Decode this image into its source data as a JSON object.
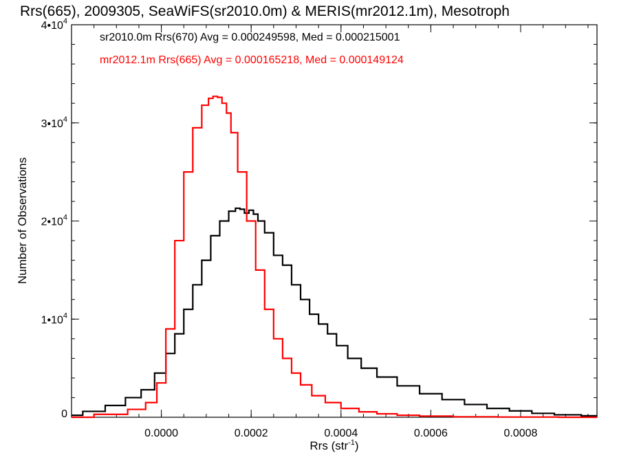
{
  "chart_data": {
    "type": "line",
    "title": "Rrs(665), 2009305, SeaWiFS(sr2010.0m) & MERIS(mr2012.1m), Mesotroph",
    "xlabel_main": "Rrs (str",
    "xlabel_sup": "-1",
    "xlabel_end": ")",
    "ylabel": "Number of Observations",
    "xlim": [
      -0.0002,
      0.00097
    ],
    "ylim": [
      0,
      40000
    ],
    "grid": false,
    "legend_position": "top-left",
    "x_ticks": [
      {
        "value": 0.0,
        "label": "0.0000"
      },
      {
        "value": 0.0002,
        "label": "0.0002"
      },
      {
        "value": 0.0004,
        "label": "0.0004"
      },
      {
        "value": 0.0006,
        "label": "0.0006"
      },
      {
        "value": 0.0008,
        "label": "0.0008"
      }
    ],
    "y_ticks": [
      {
        "value": 0,
        "mant": "0",
        "exp": ""
      },
      {
        "value": 10000,
        "mant": "1•10",
        "exp": "4"
      },
      {
        "value": 20000,
        "mant": "2•10",
        "exp": "4"
      },
      {
        "value": 30000,
        "mant": "3•10",
        "exp": "4"
      },
      {
        "value": 40000,
        "mant": "4•10",
        "exp": "4"
      }
    ],
    "series": [
      {
        "name": "sr2010.0m Rrs(670)",
        "legend": "sr2010.0m Rrs(670) Avg = 0.000249598, Med = 0.000215001",
        "color": "#000000",
        "x": [
          -0.0002,
          -0.00015,
          -0.0001,
          -6e-05,
          -3e-05,
          0.0,
          2e-05,
          4e-05,
          6e-05,
          8e-05,
          0.0001,
          0.00012,
          0.00014,
          0.00016,
          0.00017,
          0.00018,
          0.00019,
          0.0002,
          0.00021,
          0.00022,
          0.00024,
          0.00026,
          0.00028,
          0.0003,
          0.00032,
          0.00034,
          0.00036,
          0.00038,
          0.0004,
          0.00043,
          0.00046,
          0.0005,
          0.00055,
          0.0006,
          0.00065,
          0.0007,
          0.00075,
          0.0008,
          0.00085,
          0.0009,
          0.00097
        ],
        "y": [
          200,
          600,
          1200,
          2000,
          2800,
          4500,
          6500,
          8500,
          11000,
          13500,
          16000,
          18500,
          20000,
          21000,
          21300,
          21200,
          20800,
          21100,
          20700,
          20000,
          18800,
          16500,
          15500,
          13500,
          12000,
          10500,
          9500,
          8500,
          7300,
          6000,
          5000,
          4100,
          3200,
          2400,
          1800,
          1300,
          900,
          650,
          400,
          250,
          150
        ]
      },
      {
        "name": "mr2012.1m Rrs(665)",
        "legend": "mr2012.1m Rrs(665) Avg = 0.000165218, Med = 0.000149124",
        "color": "#ff0000",
        "x": [
          -0.0002,
          -0.0001,
          -5e-05,
          -2e-05,
          0.0,
          2e-05,
          4e-05,
          6e-05,
          8e-05,
          0.0001,
          0.00011,
          0.00012,
          0.00013,
          0.00014,
          0.00015,
          0.00016,
          0.00018,
          0.0002,
          0.00022,
          0.00024,
          0.00026,
          0.00028,
          0.0003,
          0.00032,
          0.00035,
          0.00038,
          0.00042,
          0.00046,
          0.0005,
          0.00055,
          0.0006,
          0.0007,
          0.0008,
          0.00097
        ],
        "y": [
          0,
          300,
          800,
          1500,
          3500,
          9000,
          18000,
          25000,
          29500,
          31800,
          32500,
          32700,
          32600,
          32000,
          31000,
          29000,
          25000,
          20000,
          15000,
          11000,
          8000,
          6000,
          4500,
          3300,
          2200,
          1500,
          900,
          550,
          350,
          200,
          120,
          50,
          20,
          0
        ]
      }
    ]
  }
}
